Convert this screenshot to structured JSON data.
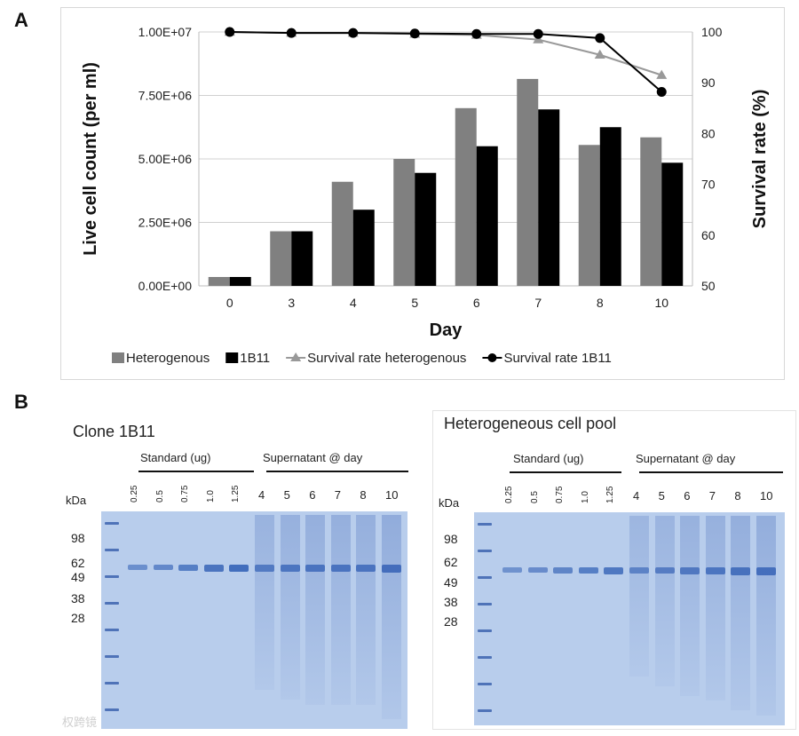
{
  "panel_labels": {
    "a": "A",
    "b": "B"
  },
  "chart_data": {
    "type": "bar",
    "categories": [
      "0",
      "3",
      "4",
      "5",
      "6",
      "7",
      "8",
      "10"
    ],
    "series": [
      {
        "name": "Heterogenous",
        "type": "bar",
        "axis": "left",
        "color": "#808080",
        "values": [
          350000,
          2150000,
          4100000,
          5000000,
          7000000,
          8150000,
          5550000,
          5850000
        ]
      },
      {
        "name": "1B11",
        "type": "bar",
        "axis": "left",
        "color": "#000000",
        "values": [
          350000,
          2150000,
          3000000,
          4450000,
          5500000,
          6950000,
          6250000,
          4850000
        ]
      },
      {
        "name": "Survival rate heterogenous",
        "type": "line",
        "axis": "right",
        "color": "#999999",
        "marker": "triangle",
        "values": [
          100,
          99.8,
          99.8,
          99.6,
          99.4,
          98.5,
          95.5,
          91.5
        ]
      },
      {
        "name": "Survival rate 1B11",
        "type": "line",
        "axis": "right",
        "color": "#000000",
        "marker": "circle",
        "values": [
          100,
          99.8,
          99.8,
          99.7,
          99.6,
          99.6,
          98.8,
          88.2
        ]
      }
    ],
    "xlabel": "Day",
    "ylabel": "Live cell count (per ml)",
    "y2label": "Survival rate (%)",
    "ylim": [
      0,
      10000000
    ],
    "y2lim": [
      50,
      100
    ],
    "yticks": [
      "0.00E+00",
      "2.50E+06",
      "5.00E+06",
      "7.50E+06",
      "1.00E+07"
    ],
    "y2ticks": [
      "50",
      "60",
      "70",
      "80",
      "90",
      "100"
    ],
    "grid": true,
    "legend_position": "bottom"
  },
  "gels": [
    {
      "title": "Clone 1B11",
      "kda_label": "kDa",
      "standard_label": "Standard (ug)",
      "supernatant_label": "Supernatant @ day",
      "standard_lanes": [
        "0.25",
        "0.5",
        "0.75",
        "1.0",
        "1.25"
      ],
      "day_lanes": [
        "4",
        "5",
        "6",
        "7",
        "8",
        "10"
      ],
      "mw_markers": [
        "98",
        "62",
        "49",
        "38",
        "28"
      ],
      "standard_band_intensity": [
        0.35,
        0.45,
        0.6,
        0.75,
        0.85
      ],
      "day_band_intensity": [
        0.7,
        0.8,
        0.85,
        0.85,
        0.85,
        1.0
      ]
    },
    {
      "title": "Heterogeneous cell pool",
      "kda_label": "kDa",
      "standard_label": "Standard (ug)",
      "supernatant_label": "Supernatant @ day",
      "standard_lanes": [
        "0.25",
        "0.5",
        "0.75",
        "1.0",
        "1.25"
      ],
      "day_lanes": [
        "4",
        "5",
        "6",
        "7",
        "8",
        "10"
      ],
      "mw_markers": [
        "98",
        "62",
        "49",
        "38",
        "28"
      ],
      "standard_band_intensity": [
        0.3,
        0.4,
        0.5,
        0.6,
        0.7
      ],
      "day_band_intensity": [
        0.55,
        0.65,
        0.75,
        0.8,
        0.9,
        0.95
      ]
    }
  ],
  "watermark": "权跨镜"
}
